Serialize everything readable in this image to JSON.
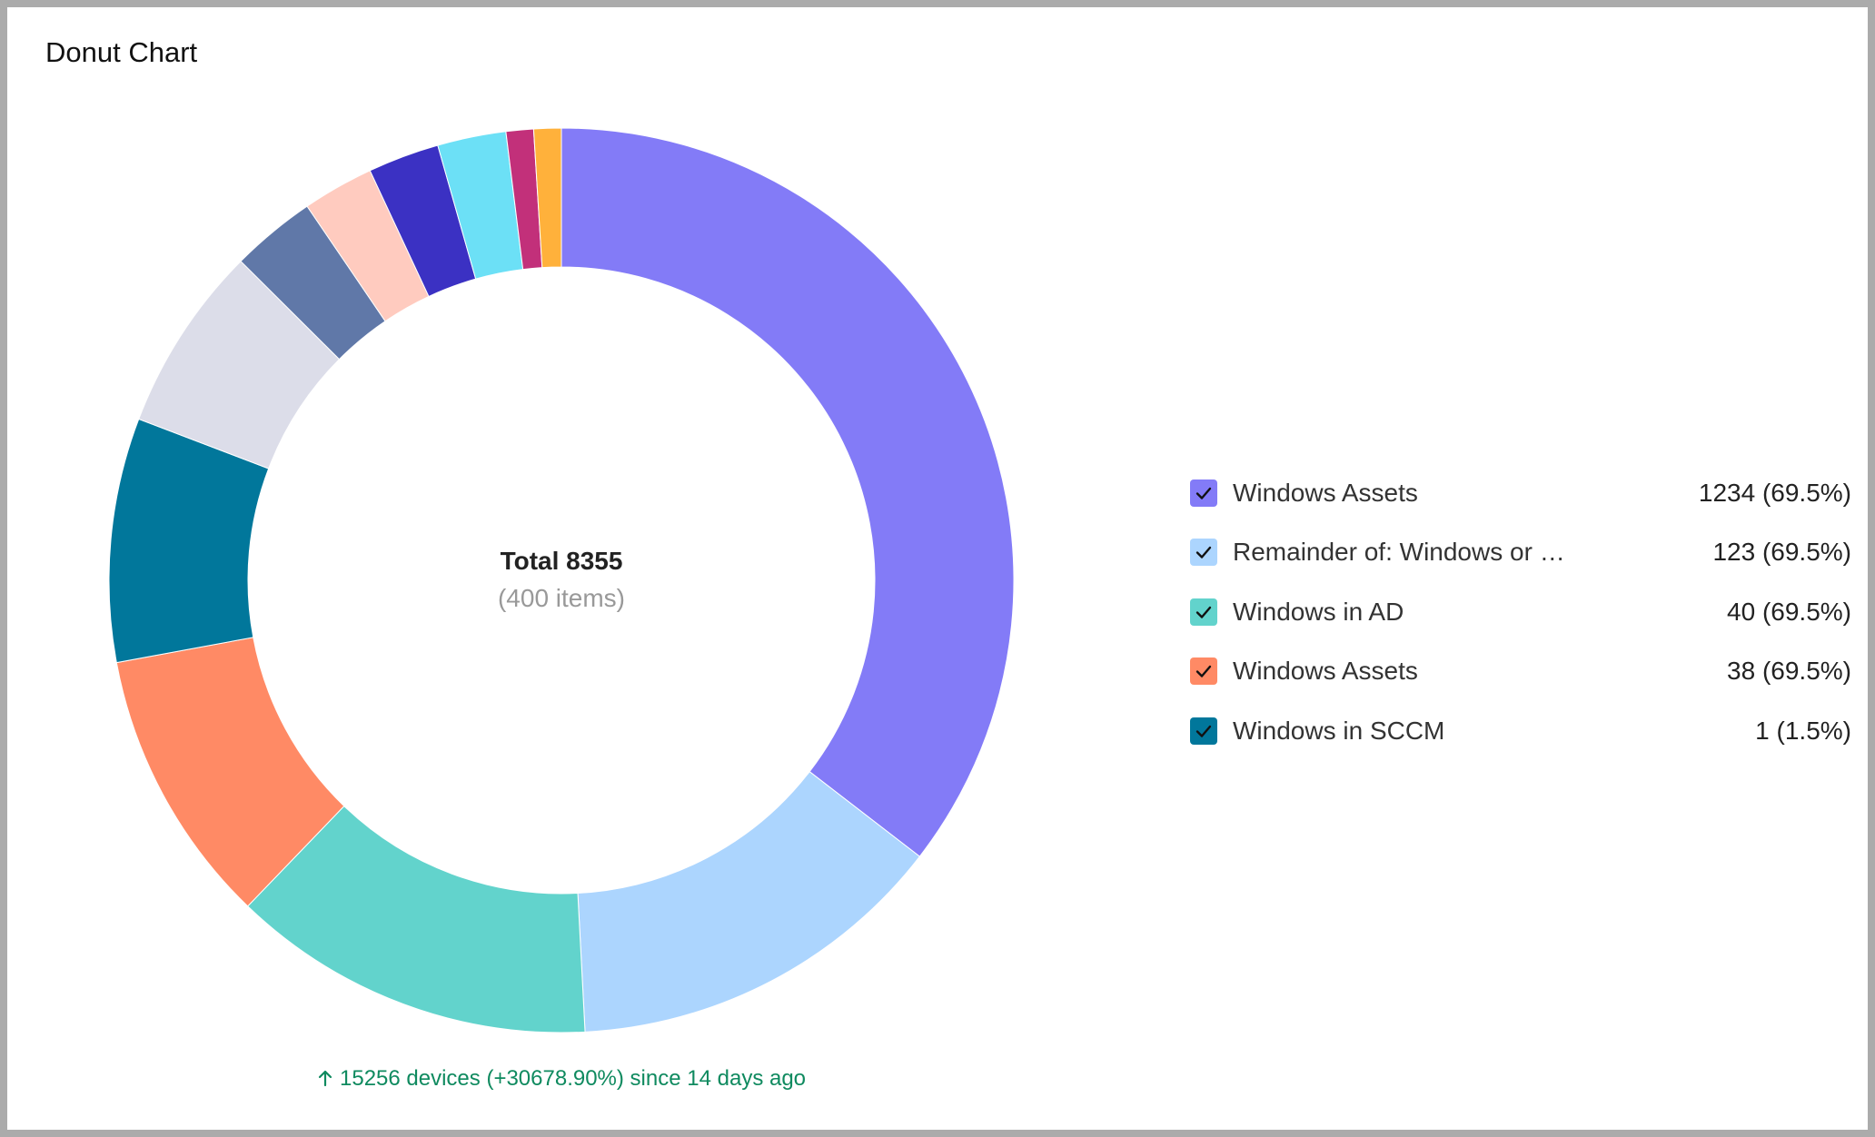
{
  "card": {
    "title": "Donut Chart"
  },
  "chart_data": {
    "type": "pie",
    "variant": "donut",
    "center": {
      "total_label": "Total 8355",
      "items_label": "(400 items)"
    },
    "slices": [
      {
        "color": "#837bf7",
        "value": 36.2
      },
      {
        "color": "#acd5fe",
        "value": 14.0
      },
      {
        "color": "#62d3cc",
        "value": 13.3
      },
      {
        "color": "#ff8a65",
        "value": 10.1
      },
      {
        "color": "#01779b",
        "value": 8.9
      },
      {
        "color": "#dcdde9",
        "value": 6.8
      },
      {
        "color": "#6078a8",
        "value": 3.1
      },
      {
        "color": "#ffcbbf",
        "value": 2.6
      },
      {
        "color": "#3b31c3",
        "value": 2.6
      },
      {
        "color": "#6ce0f6",
        "value": 2.5
      },
      {
        "color": "#c2307a",
        "value": 1.0
      },
      {
        "color": "#ffb13b",
        "value": 1.0
      }
    ],
    "legend": [
      {
        "label": "Windows Assets",
        "value": "1234 (69.5%)",
        "color": "#837bf7"
      },
      {
        "label": "Remainder of: Windows or Linux Assets",
        "value": "123 (69.5%)",
        "color": "#acd5fe"
      },
      {
        "label": "Windows in AD",
        "value": "40 (69.5%)",
        "color": "#62d3cc"
      },
      {
        "label": "Windows Assets",
        "value": "38 (69.5%)",
        "color": "#ff8a65"
      },
      {
        "label": "Windows in SCCM",
        "value": "1 (1.5%)",
        "color": "#01779b"
      }
    ],
    "legend_position": "right"
  },
  "trend": {
    "icon": "arrow-up-icon",
    "text": "15256 devices (+30678.90%) since 14 days ago",
    "color": "#0f8a5f"
  }
}
